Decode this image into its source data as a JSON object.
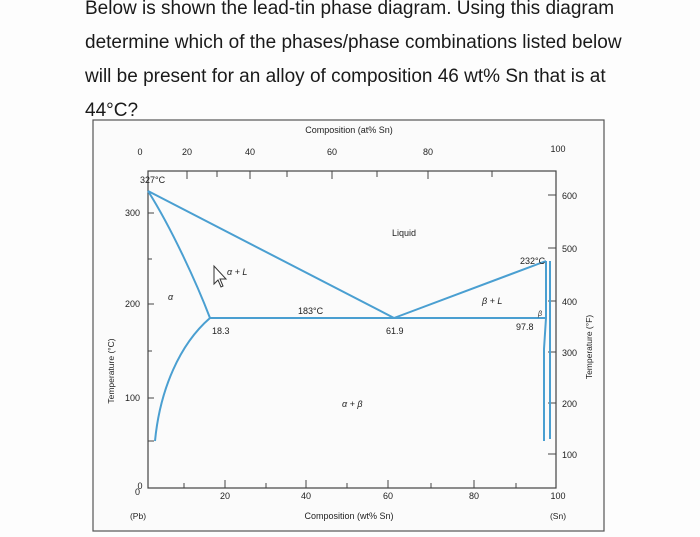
{
  "question": {
    "lines": [
      "Below is shown the lead-tin phase diagram. Using this diagram",
      "determine which of the phases/phase combinations listed below",
      "will be present for an alloy of composition 46 wt% Sn that is at",
      "44°C?"
    ]
  },
  "diagram": {
    "top_axis_label": "Composition (at% Sn)",
    "top_ticks": [
      "0",
      "20",
      "40",
      "60",
      "80",
      "100"
    ],
    "bottom_axis_label": "Composition (wt% Sn)",
    "bottom_ticks": [
      "0",
      "20",
      "40",
      "60",
      "80",
      "100"
    ],
    "bottom_left_end": "(Pb)",
    "bottom_right_end": "(Sn)",
    "left_axis_label": "Temperature (°C)",
    "left_ticks": [
      "0",
      "100",
      "200",
      "300"
    ],
    "right_axis_label": "Temperature (°F)",
    "right_ticks": [
      "100",
      "200",
      "300",
      "400",
      "500",
      "600"
    ],
    "labels": {
      "pb_melt": "327°C",
      "sn_melt": "232°C",
      "eutectic_temp": "183°C",
      "alpha_limit": "18.3",
      "eutectic_comp": "61.9",
      "beta_limit": "97.8",
      "liquid": "Liquid",
      "alpha": "α",
      "alpha_liquid": "α + L",
      "beta_liquid": "β + L",
      "alpha_beta": "α + β",
      "beta": "β"
    },
    "line_color": "#4a9fd1"
  }
}
